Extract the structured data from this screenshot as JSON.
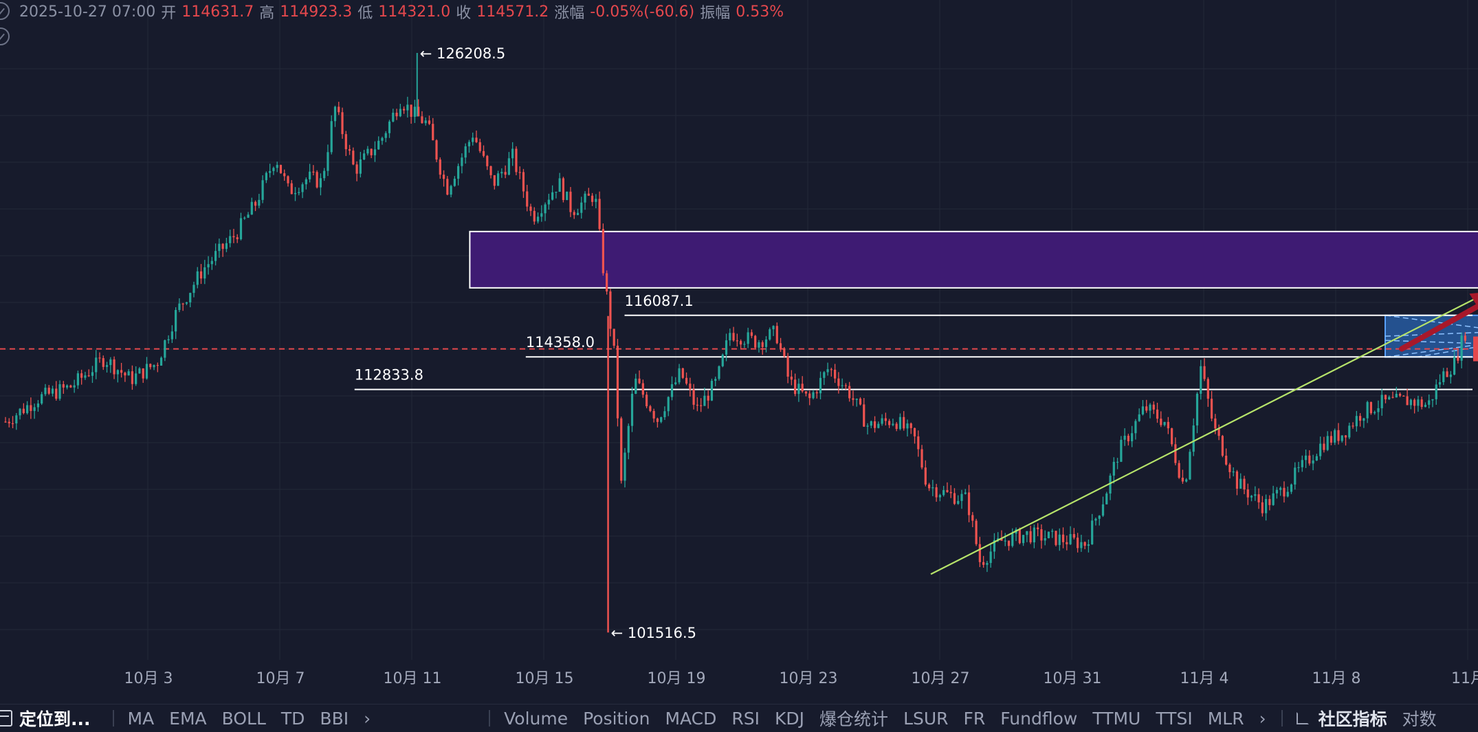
{
  "header": {
    "datetime": "2025-10-27 07:00",
    "open_label": "开",
    "open": "114631.7",
    "high_label": "高",
    "high": "114923.3",
    "low_label": "低",
    "low": "114321.0",
    "close_label": "收",
    "close": "114571.2",
    "change_label": "涨幅",
    "change": "-0.05%(-60.6)",
    "amplitude_label": "振幅",
    "amplitude": "0.53%"
  },
  "colors": {
    "background": "#171b2c",
    "grid": "#232839",
    "up": "#26a69a",
    "down": "#ef5350",
    "zone_purple": "#3e1b73",
    "zone_blue": "#2f7de1",
    "trendline": "#b6e36a",
    "arrow": "#a8182a",
    "current_price_line": "#e5484d"
  },
  "chart_data": {
    "type": "candlestick",
    "ylim": [
      100000,
      127000
    ],
    "x_ticks": [
      "10月 3",
      "10月 7",
      "10月 11",
      "10月 15",
      "10月 19",
      "10月 23",
      "10月 27",
      "10月 31",
      "11月 4",
      "11月 8",
      "11月"
    ],
    "price_path": [
      [
        0,
        110500
      ],
      [
        1,
        111500
      ],
      [
        2,
        112000
      ],
      [
        3,
        113200
      ],
      [
        3.8,
        112300
      ],
      [
        4.6,
        113000
      ],
      [
        5.2,
        115200
      ],
      [
        6,
        117000
      ],
      [
        7,
        118500
      ],
      [
        7.6,
        119800
      ],
      [
        8.2,
        121800
      ],
      [
        8.6,
        120300
      ],
      [
        9.2,
        120900
      ],
      [
        9.6,
        120700
      ],
      [
        10,
        123900
      ],
      [
        10.6,
        121200
      ],
      [
        11.4,
        122500
      ],
      [
        12,
        124200
      ],
      [
        12.4,
        123600
      ],
      [
        12.8,
        123200
      ],
      [
        13.4,
        120400
      ],
      [
        14.2,
        122800
      ],
      [
        14.8,
        120600
      ],
      [
        15.4,
        121800
      ],
      [
        16,
        119200
      ],
      [
        16.8,
        120700
      ],
      [
        17.2,
        119500
      ],
      [
        17.9,
        120200
      ],
      [
        18.1,
        117600
      ],
      [
        18.5,
        113200
      ],
      [
        18.7,
        107800
      ],
      [
        19.1,
        112300
      ],
      [
        19.8,
        110600
      ],
      [
        20.5,
        112600
      ],
      [
        21,
        111000
      ],
      [
        21.6,
        112200
      ],
      [
        22,
        114300
      ],
      [
        22.8,
        113900
      ],
      [
        23.4,
        114300
      ],
      [
        23.8,
        112200
      ],
      [
        24.4,
        111400
      ],
      [
        25,
        112800
      ],
      [
        25.6,
        111800
      ],
      [
        26.2,
        110300
      ],
      [
        27,
        110600
      ],
      [
        27.6,
        109800
      ],
      [
        28,
        107800
      ],
      [
        28.6,
        107400
      ],
      [
        29.2,
        107200
      ],
      [
        29.6,
        104500
      ],
      [
        30.2,
        105400
      ],
      [
        31,
        105700
      ],
      [
        32,
        105500
      ],
      [
        32.8,
        105300
      ],
      [
        33.4,
        107400
      ],
      [
        33.8,
        109200
      ],
      [
        34.6,
        111100
      ],
      [
        35.2,
        110500
      ],
      [
        35.8,
        107700
      ],
      [
        36.3,
        112800
      ],
      [
        36.7,
        110200
      ],
      [
        37.4,
        107900
      ],
      [
        38.2,
        106900
      ],
      [
        38.8,
        107600
      ],
      [
        39.4,
        108600
      ],
      [
        40,
        109600
      ],
      [
        40.6,
        110000
      ],
      [
        41.2,
        110900
      ],
      [
        41.8,
        111300
      ],
      [
        42.6,
        111400
      ],
      [
        43.2,
        111200
      ],
      [
        43.6,
        112400
      ],
      [
        44,
        113000
      ],
      [
        44.4,
        114571
      ]
    ],
    "labels": [
      {
        "text": "← 126208.5",
        "x": 12.5,
        "y": 126208.5
      },
      {
        "text": "← 101516.5",
        "x": 18.3,
        "y": 101516.5
      }
    ],
    "levels": [
      {
        "label": "116087.1",
        "price": 115030,
        "x_start": 18.8,
        "label_x": 18.8
      },
      {
        "label": "114358.0",
        "price": 113260,
        "x_start": 15.8,
        "label_x": 15.8
      },
      {
        "label": "112833.8",
        "price": 111870,
        "x_start": 10.6,
        "label_x": 10.6
      }
    ],
    "current_price": 113600,
    "zones": [
      {
        "name": "supply-zone",
        "x_start": 14.1,
        "x_end": 58.0,
        "y_top": 118600,
        "y_bottom": 116200
      },
      {
        "name": "target-zone",
        "x_start": 41.9,
        "x_end": 51.4,
        "y_top": 115030,
        "y_bottom": 113250
      }
    ],
    "trendline": {
      "x1": 28.1,
      "y1": 104000,
      "x2": 45.0,
      "y2": 116000
    },
    "arrow": {
      "x1": 42.4,
      "y1": 113600,
      "x2": 45.2,
      "y2": 116050
    }
  },
  "toolbar": {
    "locate": "定位到...",
    "left_items": [
      "MA",
      "EMA",
      "BOLL",
      "TD",
      "BBI"
    ],
    "right_items": [
      "Volume",
      "Position",
      "MACD",
      "RSI",
      "KDJ",
      "爆仓统计",
      "LSUR",
      "FR",
      "Fundflow",
      "TTMU",
      "TTSI",
      "MLR"
    ],
    "community": "社区指标",
    "tail": "对数"
  }
}
